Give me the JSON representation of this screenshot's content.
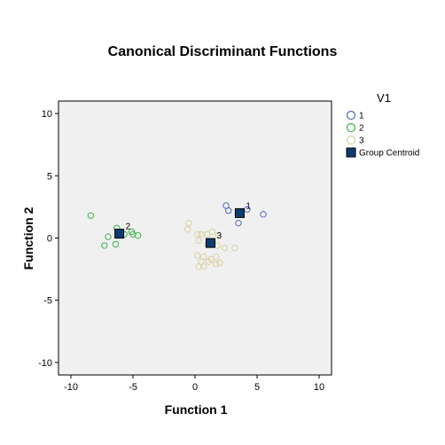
{
  "chart_data": {
    "type": "scatter",
    "title": "Canonical Discriminant Functions",
    "xlabel": "Function 1",
    "ylabel": "Function 2",
    "xlim": [
      -11,
      11
    ],
    "ylim": [
      -11,
      11
    ],
    "xticks": [
      -10,
      -5,
      0,
      5,
      10
    ],
    "yticks": [
      -10,
      -5,
      0,
      5,
      10
    ],
    "grid": false,
    "plot_background": "#f0f0f0",
    "legend": {
      "title": "V1",
      "position": "right",
      "entries": [
        {
          "label": "1",
          "marker": "circle",
          "color": "#5467b4"
        },
        {
          "label": "2",
          "marker": "circle",
          "color": "#3cb34a"
        },
        {
          "label": "3",
          "marker": "circle",
          "color": "#d8d0a0"
        },
        {
          "label": "Group Centroid",
          "marker": "square",
          "color": "#0b3d70"
        }
      ]
    },
    "series": [
      {
        "name": "1",
        "color": "#5467b4",
        "points": [
          [
            2.5,
            2.6
          ],
          [
            2.7,
            2.2
          ],
          [
            3.5,
            1.2
          ],
          [
            4.2,
            2.3
          ],
          [
            5.5,
            1.9
          ]
        ]
      },
      {
        "name": "2",
        "color": "#3cb34a",
        "points": [
          [
            -8.4,
            1.8
          ],
          [
            -6.3,
            0.8
          ],
          [
            -5.0,
            0.3
          ],
          [
            -5.1,
            0.5
          ],
          [
            -4.6,
            0.2
          ],
          [
            -7.0,
            0.1
          ],
          [
            -7.3,
            -0.6
          ],
          [
            -6.4,
            -0.5
          ],
          [
            -5.7,
            0.3
          ]
        ]
      },
      {
        "name": "3",
        "color": "#d8d0a0",
        "points": [
          [
            -0.5,
            1.2
          ],
          [
            -0.6,
            0.7
          ],
          [
            0.2,
            0.3
          ],
          [
            0.5,
            0.3
          ],
          [
            1.0,
            0.3
          ],
          [
            1.4,
            0.5
          ],
          [
            1.9,
            0.2
          ],
          [
            0.3,
            -0.2
          ],
          [
            1.0,
            -0.5
          ],
          [
            1.8,
            -0.6
          ],
          [
            0.2,
            -1.4
          ],
          [
            0.7,
            -1.5
          ],
          [
            1.3,
            -1.7
          ],
          [
            1.7,
            -1.5
          ],
          [
            0.5,
            -1.9
          ],
          [
            1.1,
            -1.9
          ],
          [
            1.7,
            -2.1
          ],
          [
            2.0,
            -2.0
          ],
          [
            0.3,
            -2.3
          ],
          [
            0.7,
            -2.3
          ],
          [
            2.4,
            -0.8
          ],
          [
            3.2,
            -0.8
          ]
        ]
      }
    ],
    "centroids": [
      {
        "label": "1",
        "x": 3.6,
        "y": 2.0,
        "color": "#0b3d70"
      },
      {
        "label": "2",
        "x": -6.1,
        "y": 0.35,
        "color": "#0b3d70"
      },
      {
        "label": "3",
        "x": 1.25,
        "y": -0.4,
        "color": "#0b3d70"
      }
    ]
  }
}
